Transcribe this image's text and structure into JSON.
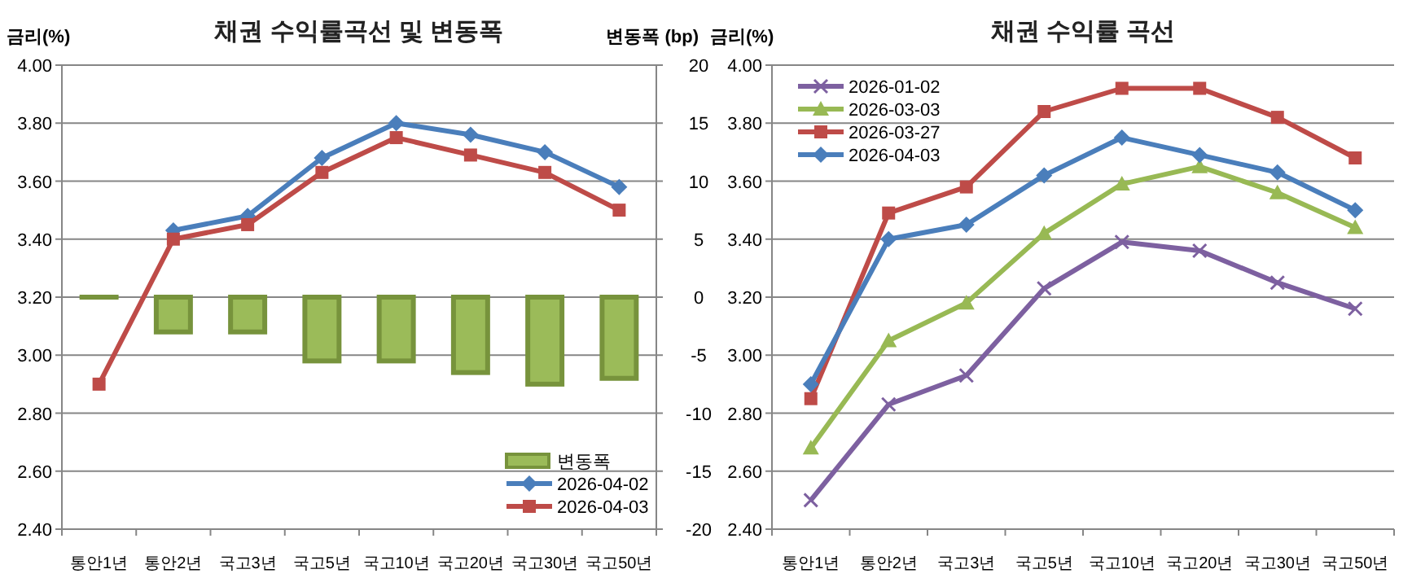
{
  "chart_data": [
    {
      "type": "line",
      "title": "채권 수익률곡선 및 변동폭",
      "ylabel": "금리(%)",
      "y2label": "변동폭 (bp)",
      "categories": [
        "통안1년",
        "통안2년",
        "국고3년",
        "국고5년",
        "국고10년",
        "국고20년",
        "국고30년",
        "국고50년"
      ],
      "ylim": [
        2.4,
        4.0
      ],
      "yticks": [
        {
          "value": 2.4,
          "label": "2.40"
        },
        {
          "value": 2.6,
          "label": "2.60"
        },
        {
          "value": 2.8,
          "label": "2.80"
        },
        {
          "value": 3.0,
          "label": "3.00"
        },
        {
          "value": 3.2,
          "label": "3.20"
        },
        {
          "value": 3.4,
          "label": "3.40"
        },
        {
          "value": 3.6,
          "label": "3.60"
        },
        {
          "value": 3.8,
          "label": "3.80"
        },
        {
          "value": 4.0,
          "label": "4.00"
        }
      ],
      "y2lim": [
        -20,
        20
      ],
      "y2ticks": [
        -20,
        -15,
        -10,
        -5,
        0,
        5,
        10,
        15,
        20
      ],
      "grid": "y",
      "legend": "bottom right",
      "series": [
        {
          "name": "변동폭",
          "type": "bar",
          "axis": "y2",
          "color": "#9bbb59",
          "values": [
            0,
            -3,
            -3,
            -5.5,
            -5.5,
            -6.5,
            -7.5,
            -7
          ]
        },
        {
          "name": "2026-04-02",
          "color": "#4a7ebb",
          "marker": "diamond",
          "values": [
            null,
            3.43,
            3.48,
            3.68,
            3.8,
            3.76,
            3.7,
            3.58
          ]
        },
        {
          "name": "2026-04-03",
          "color": "#be4b48",
          "marker": "square",
          "values": [
            2.9,
            3.4,
            3.45,
            3.63,
            3.75,
            3.69,
            3.63,
            3.5
          ]
        }
      ]
    },
    {
      "type": "line",
      "title": "채권 수익률 곡선",
      "ylabel": "금리(%)",
      "categories": [
        "통안1년",
        "통안2년",
        "국고3년",
        "국고5년",
        "국고10년",
        "국고20년",
        "국고30년",
        "국고50년"
      ],
      "ylim": [
        2.4,
        4.0
      ],
      "yticks": [
        {
          "value": 2.4,
          "label": "2.40"
        },
        {
          "value": 2.6,
          "label": "2.60"
        },
        {
          "value": 2.8,
          "label": "2.80"
        },
        {
          "value": 3.0,
          "label": "3.00"
        },
        {
          "value": 3.2,
          "label": "3.20"
        },
        {
          "value": 3.4,
          "label": "3.40"
        },
        {
          "value": 3.6,
          "label": "3.60"
        },
        {
          "value": 3.8,
          "label": "3.80"
        },
        {
          "value": 4.0,
          "label": "4.00"
        }
      ],
      "grid": "y",
      "legend": "top left",
      "series": [
        {
          "name": "2026-01-02",
          "color": "#7d60a0",
          "marker": "cross",
          "values": [
            2.5,
            2.83,
            2.93,
            3.23,
            3.39,
            3.36,
            3.25,
            3.16
          ]
        },
        {
          "name": "2026-03-03",
          "color": "#98b954",
          "marker": "triangle",
          "values": [
            2.68,
            3.05,
            3.18,
            3.42,
            3.59,
            3.65,
            3.56,
            3.44
          ]
        },
        {
          "name": "2026-03-27",
          "color": "#be4b48",
          "marker": "square",
          "values": [
            2.85,
            3.49,
            3.58,
            3.84,
            3.92,
            3.92,
            3.82,
            3.68
          ]
        },
        {
          "name": "2026-04-03",
          "color": "#4a7ebb",
          "marker": "diamond",
          "values": [
            2.9,
            3.4,
            3.45,
            3.62,
            3.75,
            3.69,
            3.63,
            3.5
          ]
        }
      ]
    }
  ]
}
